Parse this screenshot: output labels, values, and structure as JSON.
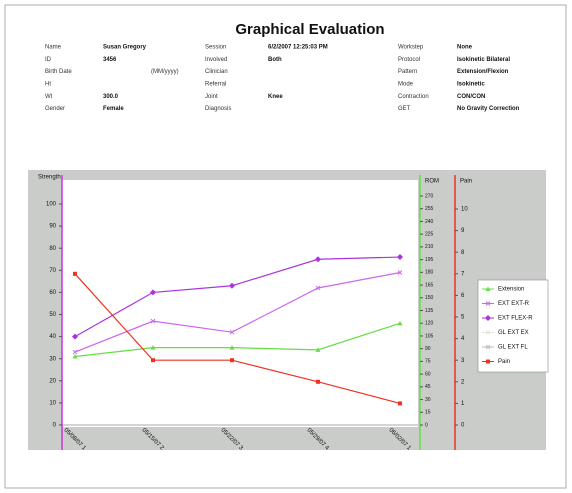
{
  "document": {
    "title": "Graphical Evaluation",
    "columns": [
      [
        {
          "label": "Name",
          "value": "Susan Gregory"
        },
        {
          "label": "ID",
          "value": "3456"
        },
        {
          "label": "Birth Date",
          "note": "(MM/yyyy)"
        },
        {
          "label": "Ht"
        },
        {
          "label": "Wt",
          "value": "300.0"
        },
        {
          "label": "Gender",
          "value": "Female"
        }
      ],
      [
        {
          "label": "Session",
          "value": "6/2/2007 12:25:03 PM"
        },
        {
          "label": "Involved",
          "value": "Both"
        },
        {
          "label": "Clinician"
        },
        {
          "label": "Referral"
        },
        {
          "label": "Joint",
          "value": "Knee"
        },
        {
          "label": "Diagnosis"
        }
      ],
      [
        {
          "label": "Workstep",
          "value": "None"
        },
        {
          "label": "Protocol",
          "value": "Isokinetic Bilateral"
        },
        {
          "label": "Pattern",
          "value": "Extension/Flexion"
        },
        {
          "label": "Mode",
          "value": "Isokinetic"
        },
        {
          "label": "Contraction",
          "value": "CON/CON"
        },
        {
          "label": "GET",
          "value": "No Gravity Correction"
        }
      ]
    ]
  },
  "chart_data": {
    "type": "line",
    "ylabel": "Strength",
    "y3label": "ROM",
    "y2label": "Pain",
    "categories": [
      "05/08/07 1",
      "05/15/07 2",
      "05/22/07 3",
      "05/29/07 4",
      "06/02/07 1"
    ],
    "ylim": [
      0,
      100
    ],
    "yticks": [
      0,
      10,
      20,
      30,
      40,
      50,
      60,
      70,
      80,
      90,
      100
    ],
    "y3lim": [
      0,
      270
    ],
    "y3ticks": [
      0,
      15,
      30,
      45,
      60,
      75,
      90,
      105,
      120,
      135,
      150,
      165,
      180,
      195,
      210,
      225,
      240,
      255,
      270
    ],
    "y2lim": [
      0,
      10
    ],
    "y2ticks": [
      0,
      1,
      2,
      3,
      4,
      5,
      6,
      7,
      8,
      9,
      10
    ],
    "series": [
      {
        "name": "Extension",
        "color": "#66dd44",
        "marker": "tri",
        "values": [
          31,
          35,
          35,
          34,
          46
        ]
      },
      {
        "name": "EXT EXT-R",
        "color": "#cc66ee",
        "marker": "x",
        "values": [
          33,
          47,
          42,
          62,
          69
        ]
      },
      {
        "name": "EXT FLEX-R",
        "color": "#aa33dd",
        "marker": "diamond",
        "values": [
          40,
          60,
          63,
          75,
          76
        ]
      },
      {
        "name": "GL EXT EX",
        "color": "#e4e4e4",
        "marker": "x",
        "values": [
          null,
          null,
          null,
          null,
          null
        ]
      },
      {
        "name": "GL EXT FL",
        "color": "#bbbbbb",
        "marker": "x",
        "values": [
          null,
          null,
          null,
          null,
          null
        ]
      },
      {
        "name": "Pain",
        "color": "#ee3322",
        "marker": "square",
        "axis": "y2",
        "values": [
          7,
          3,
          3,
          2,
          1
        ]
      }
    ]
  }
}
